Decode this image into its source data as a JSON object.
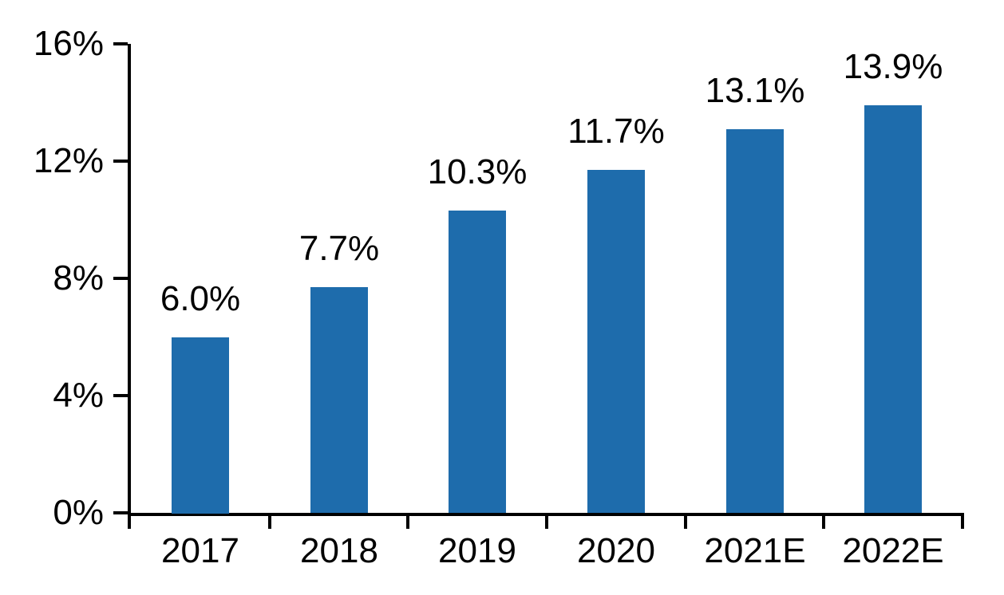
{
  "chart_data": {
    "type": "bar",
    "title": "",
    "xlabel": "",
    "ylabel": "",
    "categories": [
      "2017",
      "2018",
      "2019",
      "2020",
      "2021E",
      "2022E"
    ],
    "values": [
      6.0,
      7.7,
      10.3,
      11.7,
      13.1,
      13.9
    ],
    "value_labels": [
      "6.0%",
      "7.7%",
      "10.3%",
      "11.7%",
      "13.1%",
      "13.9%"
    ],
    "ylim": [
      0,
      16
    ],
    "ytick_step": 4,
    "ytick_labels": [
      "0%",
      "4%",
      "8%",
      "12%",
      "16%"
    ],
    "grid": false,
    "legend_position": "none",
    "bar_color": "#1E6CAC",
    "axis_color": "#000000",
    "text_color": "#000000"
  }
}
